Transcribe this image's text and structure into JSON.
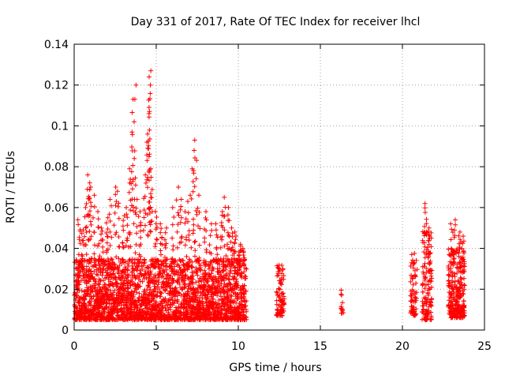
{
  "chart_data": {
    "type": "scatter",
    "title": "Day 331 of 2017, Rate Of TEC Index for receiver lhcl",
    "xlabel": "GPS time / hours",
    "ylabel": "ROTI / TECUs",
    "xlim": [
      0,
      25
    ],
    "ylim": [
      0,
      0.14
    ],
    "x_ticks": [
      "0",
      "5",
      "10",
      "15",
      "20",
      "25"
    ],
    "y_ticks": [
      "0",
      "0.02",
      "0.04",
      "0.06",
      "0.08",
      "0.1",
      "0.12",
      "0.14"
    ],
    "grid": true,
    "marker": "+",
    "color": "#ff0000",
    "clusters": [
      {
        "x_range": [
          0.0,
          10.5
        ],
        "y_base": [
          0.005,
          0.035
        ],
        "count": 2600
      },
      {
        "x_range": [
          12.3,
          12.8
        ],
        "y_base": [
          0.007,
          0.032
        ],
        "count": 90
      },
      {
        "x_range": [
          16.2,
          16.4
        ],
        "y_base": [
          0.008,
          0.02
        ],
        "count": 14
      },
      {
        "x_range": [
          20.5,
          20.9
        ],
        "y_base": [
          0.007,
          0.038
        ],
        "count": 70
      },
      {
        "x_range": [
          21.2,
          21.8
        ],
        "y_base": [
          0.005,
          0.05
        ],
        "count": 130
      },
      {
        "x_range": [
          22.8,
          23.8
        ],
        "y_base": [
          0.006,
          0.04
        ],
        "count": 260
      }
    ],
    "peaks": [
      [
        0.3,
        0.054
      ],
      [
        0.5,
        0.049
      ],
      [
        0.7,
        0.06
      ],
      [
        0.8,
        0.069
      ],
      [
        0.9,
        0.076
      ],
      [
        1.0,
        0.07
      ],
      [
        1.2,
        0.066
      ],
      [
        1.5,
        0.058
      ],
      [
        1.7,
        0.05
      ],
      [
        2.0,
        0.055
      ],
      [
        2.2,
        0.064
      ],
      [
        2.5,
        0.07
      ],
      [
        2.7,
        0.068
      ],
      [
        3.0,
        0.056
      ],
      [
        3.2,
        0.06
      ],
      [
        3.4,
        0.079
      ],
      [
        3.5,
        0.097
      ],
      [
        3.6,
        0.113
      ],
      [
        3.7,
        0.12
      ],
      [
        3.8,
        0.064
      ],
      [
        4.0,
        0.058
      ],
      [
        4.3,
        0.076
      ],
      [
        4.4,
        0.092
      ],
      [
        4.5,
        0.106
      ],
      [
        4.6,
        0.127
      ],
      [
        4.6,
        0.124
      ],
      [
        4.6,
        0.12
      ],
      [
        4.7,
        0.079
      ],
      [
        5.0,
        0.058
      ],
      [
        5.3,
        0.052
      ],
      [
        5.6,
        0.05
      ],
      [
        6.0,
        0.06
      ],
      [
        6.3,
        0.07
      ],
      [
        6.5,
        0.064
      ],
      [
        6.8,
        0.058
      ],
      [
        7.0,
        0.066
      ],
      [
        7.2,
        0.079
      ],
      [
        7.3,
        0.088
      ],
      [
        7.4,
        0.093
      ],
      [
        7.6,
        0.066
      ],
      [
        8.0,
        0.058
      ],
      [
        8.3,
        0.052
      ],
      [
        8.7,
        0.052
      ],
      [
        9.0,
        0.058
      ],
      [
        9.2,
        0.065
      ],
      [
        9.4,
        0.06
      ],
      [
        9.6,
        0.05
      ],
      [
        9.8,
        0.048
      ],
      [
        10.1,
        0.042
      ],
      [
        10.3,
        0.04
      ],
      [
        21.4,
        0.062
      ],
      [
        21.6,
        0.05
      ],
      [
        23.0,
        0.052
      ],
      [
        23.2,
        0.054
      ],
      [
        23.5,
        0.048
      ],
      [
        23.7,
        0.046
      ]
    ]
  }
}
